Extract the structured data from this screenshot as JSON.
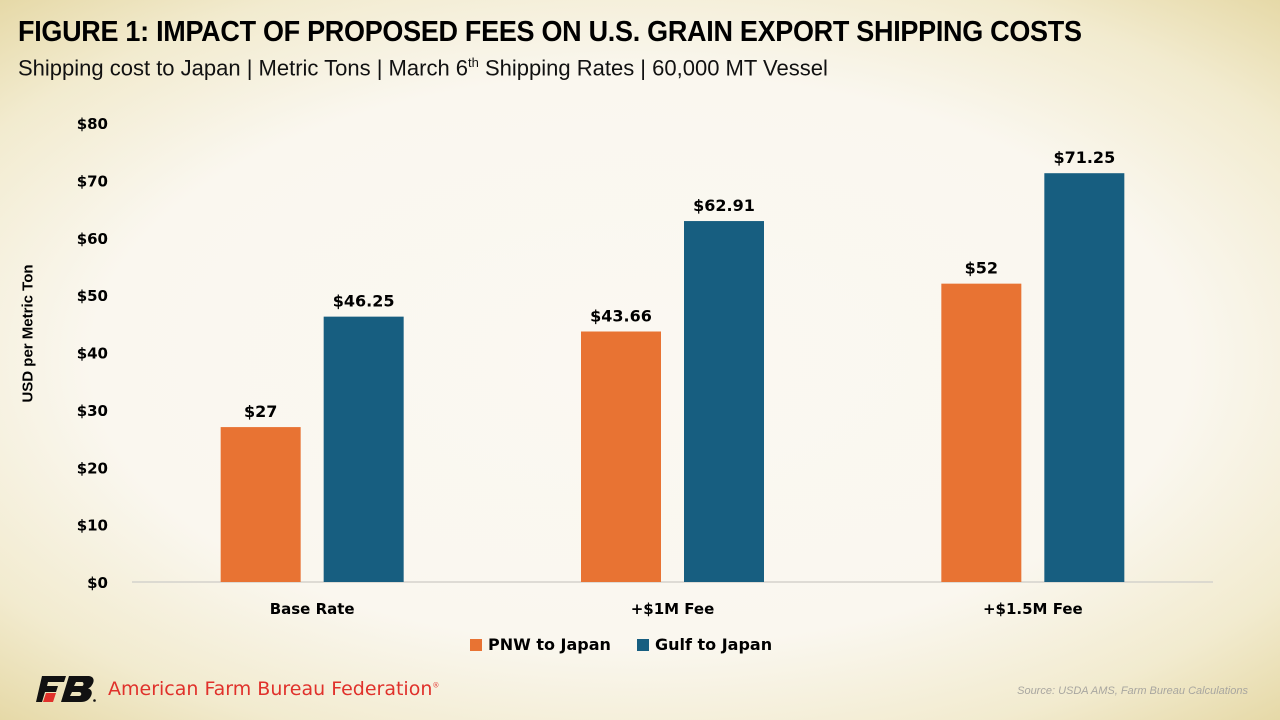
{
  "header": {
    "title": "FIGURE 1: IMPACT OF PROPOSED FEES ON U.S. GRAIN EXPORT SHIPPING COSTS",
    "subtitle_pre": "Shipping cost to Japan | Metric Tons | March 6",
    "subtitle_sup": "th",
    "subtitle_post": " Shipping Rates | 60,000 MT Vessel"
  },
  "chart_data": {
    "type": "bar",
    "title": "FIGURE 1: IMPACT OF PROPOSED FEES ON U.S. GRAIN EXPORT SHIPPING COSTS",
    "subtitle": "Shipping cost to Japan | Metric Tons | March 6th Shipping Rates | 60,000 MT Vessel",
    "xlabel": "",
    "ylabel": "USD per Metric Ton",
    "ylim": [
      0,
      80
    ],
    "yticks": [
      0,
      10,
      20,
      30,
      40,
      50,
      60,
      70,
      80
    ],
    "ytick_labels": [
      "$0",
      "$10",
      "$20",
      "$30",
      "$40",
      "$50",
      "$60",
      "$70",
      "$80"
    ],
    "grid": false,
    "legend_position": "bottom",
    "categories": [
      "Base Rate",
      "+$1M Fee",
      "+$1.5M Fee"
    ],
    "series": [
      {
        "name": "PNW to Japan",
        "color": "#e87333",
        "values": [
          27,
          43.66,
          52
        ],
        "labels": [
          "$27",
          "$43.66",
          "$52"
        ]
      },
      {
        "name": "Gulf to Japan",
        "color": "#175e80",
        "values": [
          46.25,
          62.91,
          71.25
        ],
        "labels": [
          "$46.25",
          "$62.91",
          "$71.25"
        ]
      }
    ]
  },
  "footer": {
    "logo_mark": "FB",
    "org_name": "American Farm Bureau Federation",
    "registered": "®",
    "source": "Source: USDA AMS, Farm Bureau Calculations",
    "brand_color": "#e0312b"
  }
}
